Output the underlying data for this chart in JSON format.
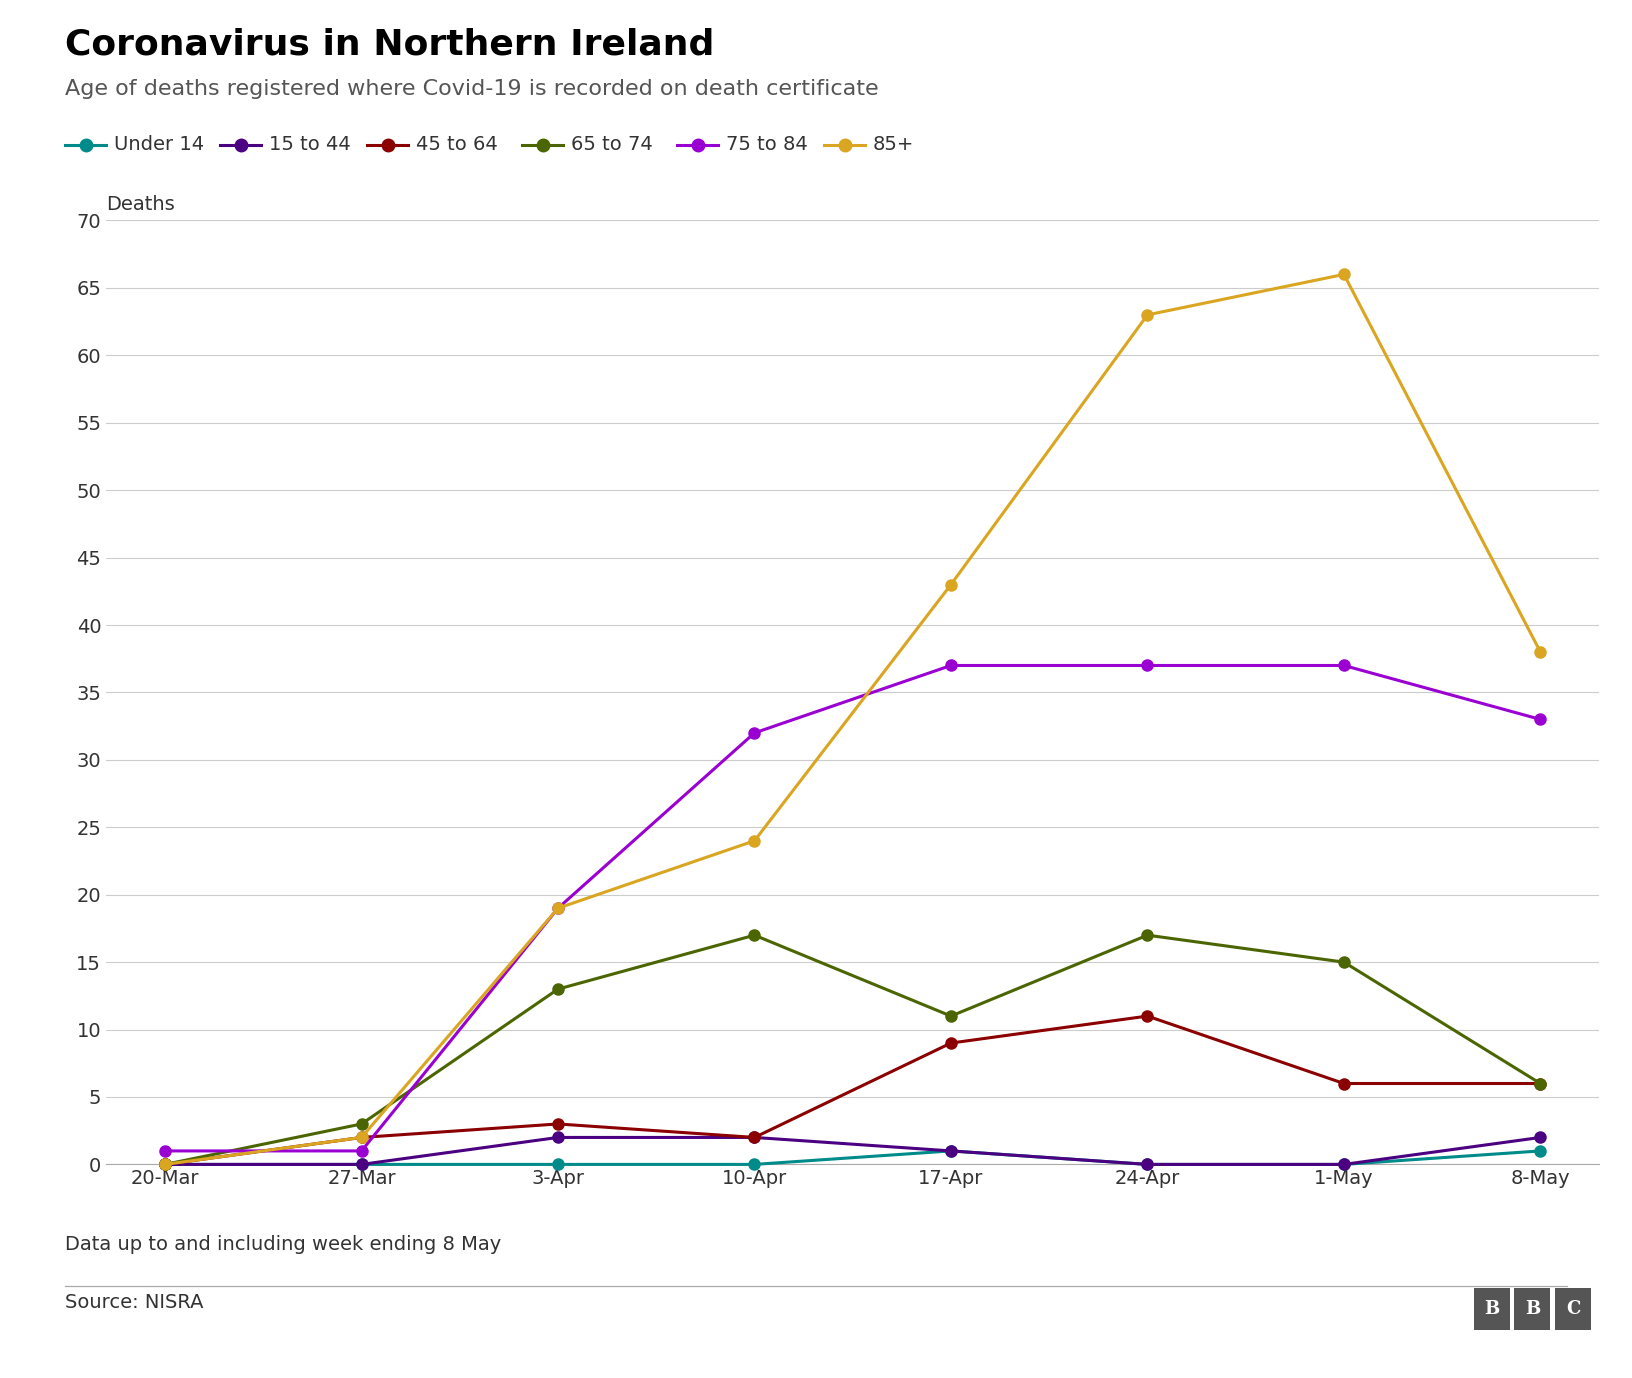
{
  "title": "Coronavirus in Northern Ireland",
  "subtitle": "Age of deaths registered where Covid-19 is recorded on death certificate",
  "footer_note": "Data up to and including week ending 8 May",
  "source": "Source: NISRA",
  "x_labels": [
    "20-Mar",
    "27-Mar",
    "3-Apr",
    "10-Apr",
    "17-Apr",
    "24-Apr",
    "1-May",
    "8-May"
  ],
  "ylabel": "Deaths",
  "ylim": [
    0,
    70
  ],
  "yticks": [
    0,
    5,
    10,
    15,
    20,
    25,
    30,
    35,
    40,
    45,
    50,
    55,
    60,
    65,
    70
  ],
  "series": [
    {
      "label": "Under 14",
      "color": "#008B8B",
      "values": [
        0,
        0,
        0,
        0,
        1,
        0,
        0,
        1
      ]
    },
    {
      "label": "15 to 44",
      "color": "#4B0082",
      "values": [
        0,
        0,
        2,
        2,
        1,
        0,
        0,
        2
      ]
    },
    {
      "label": "45 to 64",
      "color": "#8B0000",
      "values": [
        0,
        2,
        3,
        2,
        9,
        11,
        6,
        6
      ]
    },
    {
      "label": "65 to 74",
      "color": "#4B6600",
      "values": [
        0,
        3,
        13,
        17,
        11,
        17,
        15,
        6
      ]
    },
    {
      "label": "75 to 84",
      "color": "#9B00D3",
      "values": [
        1,
        1,
        19,
        32,
        37,
        37,
        37,
        33
      ]
    },
    {
      "label": "85+",
      "color": "#DAA520",
      "values": [
        0,
        2,
        19,
        24,
        43,
        63,
        66,
        38
      ]
    }
  ],
  "background_color": "#ffffff",
  "plot_bg_color": "#ffffff",
  "grid_color": "#cccccc",
  "title_fontsize": 26,
  "subtitle_fontsize": 16,
  "legend_fontsize": 14,
  "axis_label_fontsize": 14,
  "tick_fontsize": 14,
  "footer_fontsize": 14
}
